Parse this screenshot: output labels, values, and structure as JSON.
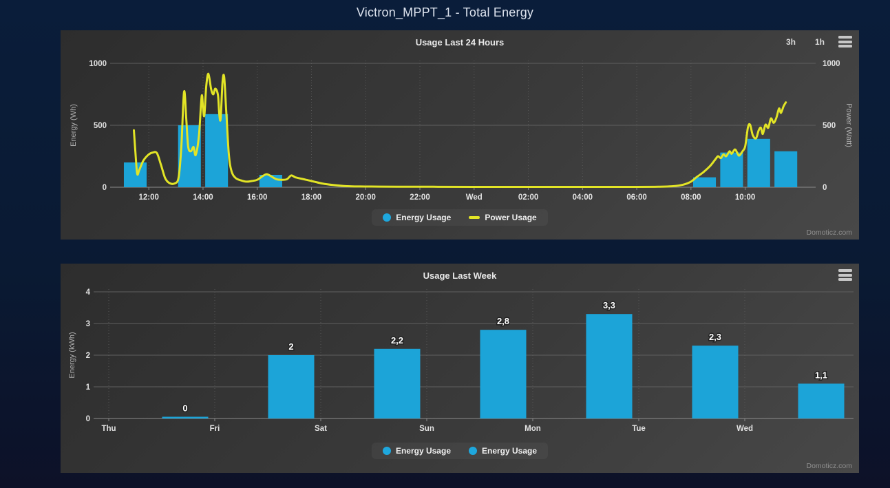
{
  "page": {
    "title": "Victron_MPPT_1 - Total Energy",
    "watermark": "Domoticz.com"
  },
  "colors": {
    "bar_blue": "#1ca4d8",
    "power_yellow": "#e2e426",
    "grid_line": "#5f5f5f",
    "grid_dotted": "#585858",
    "axis_zero_line": "#8c8c8c",
    "tick_label": "#e2e2e2",
    "axis_title": "#aeaeae",
    "bar_value_label": "#ffffff",
    "panel_background": "#3a3a3a",
    "page_background": "#0a1a33"
  },
  "chart_data": [
    {
      "type": "combo",
      "title": "Usage Last 24 Hours",
      "range_buttons": [
        "3h",
        "1h"
      ],
      "x_range": [
        10.7,
        36.6
      ],
      "x_ticks": [
        {
          "t": 12,
          "label": "12:00"
        },
        {
          "t": 14,
          "label": "14:00"
        },
        {
          "t": 16,
          "label": "16:00"
        },
        {
          "t": 18,
          "label": "18:00"
        },
        {
          "t": 20,
          "label": "20:00"
        },
        {
          "t": 22,
          "label": "22:00"
        },
        {
          "t": 24,
          "label": "Wed"
        },
        {
          "t": 26,
          "label": "02:00"
        },
        {
          "t": 28,
          "label": "04:00"
        },
        {
          "t": 30,
          "label": "06:00"
        },
        {
          "t": 32,
          "label": "08:00"
        },
        {
          "t": 34,
          "label": "10:00"
        }
      ],
      "y_left": {
        "label": "Energy (Wh)",
        "ticks": [
          0,
          500,
          1000
        ],
        "max": 1000
      },
      "y_right": {
        "label": "Power (Watt)",
        "ticks": [
          0,
          500,
          1000
        ],
        "max": 1000
      },
      "legend": [
        {
          "label": "Energy Usage",
          "marker": "circle"
        },
        {
          "label": "Power Usage",
          "marker": "line"
        }
      ],
      "series": [
        {
          "name": "Energy Usage",
          "type": "bar",
          "unit": "Wh",
          "hour_values": [
            [
              11,
              200
            ],
            [
              13,
              500
            ],
            [
              14,
              590
            ],
            [
              16,
              100
            ],
            [
              32,
              80
            ],
            [
              33,
              280
            ],
            [
              34,
              390
            ],
            [
              35,
              290
            ]
          ]
        },
        {
          "name": "Power Usage",
          "type": "line",
          "unit": "Watt",
          "points": [
            [
              11.45,
              460
            ],
            [
              11.5,
              300
            ],
            [
              11.57,
              110
            ],
            [
              11.65,
              140
            ],
            [
              11.8,
              215
            ],
            [
              12.0,
              265
            ],
            [
              12.15,
              280
            ],
            [
              12.3,
              275
            ],
            [
              12.45,
              180
            ],
            [
              12.6,
              75
            ],
            [
              12.75,
              35
            ],
            [
              12.95,
              30
            ],
            [
              13.1,
              80
            ],
            [
              13.2,
              330
            ],
            [
              13.3,
              770
            ],
            [
              13.38,
              560
            ],
            [
              13.45,
              330
            ],
            [
              13.55,
              290
            ],
            [
              13.65,
              325
            ],
            [
              13.73,
              260
            ],
            [
              13.85,
              420
            ],
            [
              13.95,
              735
            ],
            [
              14.0,
              640
            ],
            [
              14.05,
              580
            ],
            [
              14.12,
              820
            ],
            [
              14.2,
              915
            ],
            [
              14.3,
              790
            ],
            [
              14.38,
              750
            ],
            [
              14.45,
              795
            ],
            [
              14.55,
              745
            ],
            [
              14.6,
              590
            ],
            [
              14.65,
              555
            ],
            [
              14.72,
              850
            ],
            [
              14.78,
              890
            ],
            [
              14.85,
              640
            ],
            [
              14.95,
              270
            ],
            [
              15.05,
              130
            ],
            [
              15.2,
              75
            ],
            [
              15.4,
              55
            ],
            [
              15.6,
              45
            ],
            [
              15.8,
              50
            ],
            [
              16.0,
              60
            ],
            [
              16.2,
              90
            ],
            [
              16.35,
              105
            ],
            [
              16.5,
              90
            ],
            [
              16.7,
              65
            ],
            [
              16.9,
              60
            ],
            [
              17.1,
              65
            ],
            [
              17.25,
              95
            ],
            [
              17.4,
              80
            ],
            [
              17.6,
              70
            ],
            [
              17.8,
              60
            ],
            [
              18.1,
              45
            ],
            [
              18.4,
              30
            ],
            [
              18.8,
              18
            ],
            [
              19.2,
              10
            ],
            [
              19.8,
              6
            ],
            [
              20.5,
              5
            ],
            [
              21.5,
              4
            ],
            [
              22.5,
              4
            ],
            [
              24,
              3
            ],
            [
              26,
              3
            ],
            [
              28,
              3
            ],
            [
              30,
              3
            ],
            [
              30.8,
              4
            ],
            [
              31.3,
              8
            ],
            [
              31.7,
              20
            ],
            [
              32.0,
              45
            ],
            [
              32.2,
              80
            ],
            [
              32.45,
              120
            ],
            [
              32.7,
              170
            ],
            [
              32.9,
              225
            ],
            [
              33.0,
              250
            ],
            [
              33.1,
              235
            ],
            [
              33.2,
              265
            ],
            [
              33.3,
              250
            ],
            [
              33.42,
              290
            ],
            [
              33.5,
              270
            ],
            [
              33.62,
              305
            ],
            [
              33.7,
              280
            ],
            [
              33.78,
              255
            ],
            [
              33.9,
              290
            ],
            [
              34.0,
              330
            ],
            [
              34.1,
              480
            ],
            [
              34.18,
              505
            ],
            [
              34.28,
              420
            ],
            [
              34.4,
              395
            ],
            [
              34.5,
              460
            ],
            [
              34.58,
              480
            ],
            [
              34.65,
              430
            ],
            [
              34.75,
              505
            ],
            [
              34.85,
              480
            ],
            [
              34.95,
              555
            ],
            [
              35.05,
              520
            ],
            [
              35.15,
              560
            ],
            [
              35.25,
              635
            ],
            [
              35.32,
              600
            ],
            [
              35.42,
              655
            ],
            [
              35.5,
              685
            ]
          ]
        }
      ]
    },
    {
      "type": "bar",
      "title": "Usage Last Week",
      "categories": [
        "Thu",
        "Fri",
        "Sat",
        "Sun",
        "Mon",
        "Tue",
        "Wed"
      ],
      "values": [
        0,
        2,
        2.2,
        2.8,
        3.3,
        2.3,
        1.1
      ],
      "value_labels": [
        "0",
        "2",
        "2,2",
        "2,8",
        "3,3",
        "2,3",
        "1,1"
      ],
      "ylabel": "Energy (kWh)",
      "y_ticks": [
        0,
        1,
        2,
        3,
        4
      ],
      "ylim": [
        0,
        4
      ],
      "legend": [
        {
          "label": "Energy Usage"
        },
        {
          "label": "Energy Usage"
        }
      ]
    }
  ]
}
